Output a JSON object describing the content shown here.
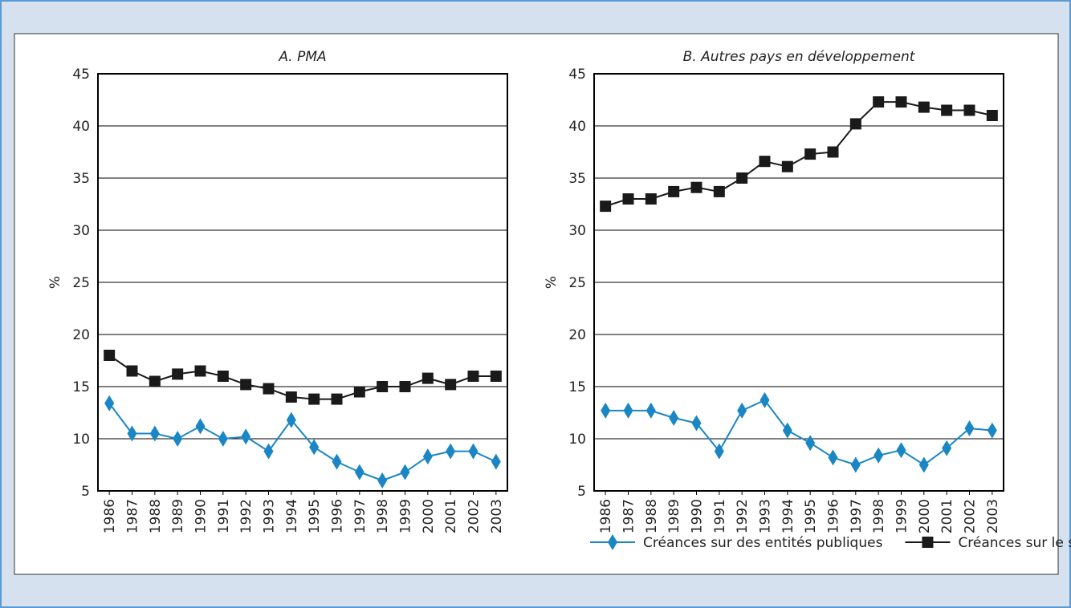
{
  "chart_data": [
    {
      "type": "line",
      "title": "A. PMA",
      "y_label": "%",
      "categories": [
        "1986",
        "1987",
        "1988",
        "1989",
        "1990",
        "1991",
        "1992",
        "1993",
        "1994",
        "1995",
        "1996",
        "1997",
        "1998",
        "1999",
        "2000",
        "2001",
        "2002",
        "2003"
      ],
      "series": [
        {
          "name": "Créances sur des entités publiques",
          "color": "#1a86c4",
          "marker": "diamond",
          "values": [
            13.4,
            10.5,
            10.5,
            10.0,
            11.2,
            10.0,
            10.2,
            8.8,
            11.8,
            9.2,
            7.8,
            6.8,
            6.0,
            6.8,
            8.3,
            8.8,
            8.8,
            7.8
          ]
        },
        {
          "name": "Créances sur le secteur privé",
          "color": "#1a1a1a",
          "marker": "square",
          "values": [
            18.0,
            16.5,
            15.5,
            16.2,
            16.5,
            16.0,
            15.2,
            14.8,
            14.0,
            13.8,
            13.8,
            14.5,
            15.0,
            15.0,
            15.8,
            15.2,
            16.0,
            16.0
          ]
        }
      ],
      "ylim": [
        5,
        45
      ],
      "yticks": [
        5,
        10,
        15,
        20,
        25,
        30,
        35,
        40,
        45
      ],
      "grid": true
    },
    {
      "type": "line",
      "title": "B. Autres pays en développement",
      "y_label": "%",
      "categories": [
        "1986",
        "1987",
        "1988",
        "1989",
        "1990",
        "1991",
        "1992",
        "1993",
        "1994",
        "1995",
        "1996",
        "1997",
        "1998",
        "1999",
        "2000",
        "2001",
        "2002",
        "2003"
      ],
      "series": [
        {
          "color": "#1a86c4",
          "marker": "diamond",
          "values": [
            12.7,
            12.7,
            12.7,
            12.0,
            11.5,
            8.8,
            12.7,
            13.7,
            10.8,
            9.6,
            8.2,
            7.5,
            8.4,
            8.9,
            7.5,
            9.1,
            11.0,
            10.8
          ]
        },
        {
          "color": "#1a1a1a",
          "marker": "square",
          "values": [
            32.3,
            33.0,
            33.0,
            33.7,
            34.1,
            33.7,
            35.0,
            36.6,
            36.1,
            37.3,
            37.5,
            40.2,
            42.3,
            42.3,
            41.8,
            41.5,
            41.5,
            41.0
          ]
        }
      ],
      "ylim": [
        5,
        45
      ],
      "yticks": [
        5,
        10,
        15,
        20,
        25,
        30,
        35,
        40,
        45
      ],
      "grid": true
    }
  ]
}
